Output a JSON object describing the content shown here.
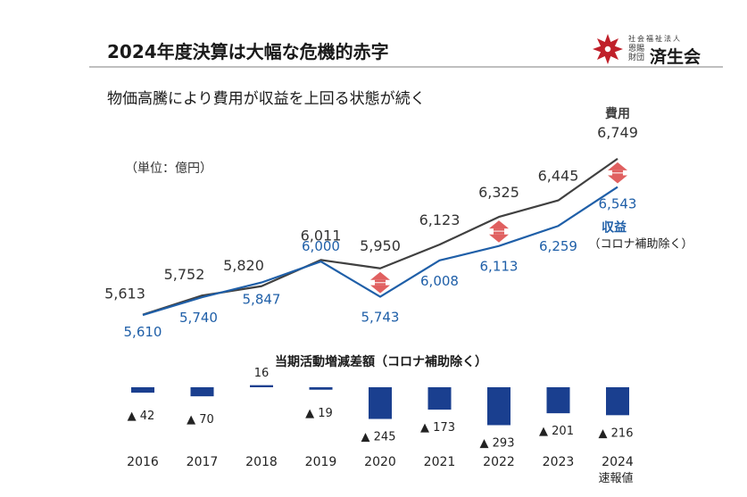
{
  "header": {
    "title": "2024年度決算は大幅な危機的赤字",
    "subtitle": "物価高騰により費用が収益を上回る状態が続く",
    "unit": "（単位：億円）"
  },
  "logo": {
    "small_text": "社会福祉法人",
    "side_text": "恩賜財団",
    "name": "済生会"
  },
  "chart_data": [
    {
      "type": "line",
      "categories": [
        "2016",
        "2017",
        "2018",
        "2019",
        "2020",
        "2021",
        "2022",
        "2023",
        "2024"
      ],
      "series": [
        {
          "name": "費用",
          "values": [
            5613,
            5752,
            5820,
            6011,
            5950,
            6123,
            6325,
            6445,
            6749
          ],
          "labels": [
            "5,613",
            "5,752",
            "5,820",
            "6,011",
            "5,950",
            "6,123",
            "6,325",
            "6,445",
            "6,749"
          ],
          "color": "#404040"
        },
        {
          "name": "収益",
          "note": "（コロナ補助除く）",
          "values": [
            5610,
            5740,
            5847,
            6000,
            5743,
            6008,
            6113,
            6259,
            6543
          ],
          "labels": [
            "5,610",
            "5,740",
            "5,847",
            "6,000",
            "5,743",
            "6,008",
            "6,113",
            "6,259",
            "6,543"
          ],
          "color": "#1f5fa8"
        }
      ],
      "gap_arrows_at": [
        "2020",
        "2022",
        "2024"
      ],
      "arrow_color": "#e06060",
      "ylim": [
        5500,
        6800
      ]
    },
    {
      "type": "bar",
      "title": "当期活動増減差額（コロナ補助除く）",
      "categories": [
        "2016",
        "2017",
        "2018",
        "2019",
        "2020",
        "2021",
        "2022",
        "2023",
        "2024"
      ],
      "category_notes": [
        "",
        "",
        "",
        "",
        "",
        "",
        "",
        "",
        "速報値"
      ],
      "values": [
        -42,
        -70,
        16,
        -19,
        -245,
        -173,
        -293,
        -201,
        -216
      ],
      "labels": [
        "▲ 42",
        "▲ 70",
        "16",
        "▲ 19",
        "▲ 245",
        "▲ 173",
        "▲ 293",
        "▲ 201",
        "▲ 216"
      ],
      "color": "#1a3f8f"
    }
  ]
}
